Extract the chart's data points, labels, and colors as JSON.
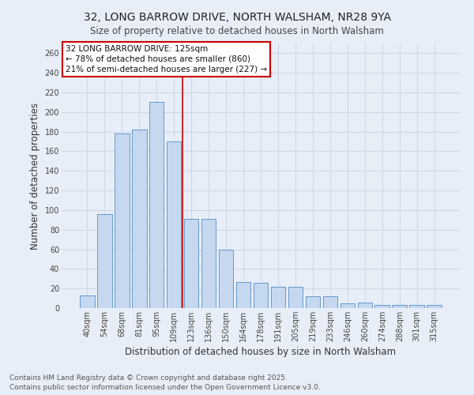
{
  "title": "32, LONG BARROW DRIVE, NORTH WALSHAM, NR28 9YA",
  "subtitle": "Size of property relative to detached houses in North Walsham",
  "xlabel": "Distribution of detached houses by size in North Walsham",
  "ylabel": "Number of detached properties",
  "categories": [
    "40sqm",
    "54sqm",
    "68sqm",
    "81sqm",
    "95sqm",
    "109sqm",
    "123sqm",
    "136sqm",
    "150sqm",
    "164sqm",
    "178sqm",
    "191sqm",
    "205sqm",
    "219sqm",
    "233sqm",
    "246sqm",
    "260sqm",
    "274sqm",
    "288sqm",
    "301sqm",
    "315sqm"
  ],
  "values": [
    13,
    96,
    178,
    182,
    210,
    170,
    91,
    91,
    60,
    27,
    26,
    22,
    22,
    12,
    12,
    5,
    6,
    3,
    3,
    3,
    3
  ],
  "bar_color": "#c5d8f0",
  "bar_edge_color": "#6699cc",
  "ref_line_x": 5.5,
  "annotation_line1": "32 LONG BARROW DRIVE: 125sqm",
  "annotation_line2": "← 78% of detached houses are smaller (860)",
  "annotation_line3": "21% of semi-detached houses are larger (227) →",
  "annotation_box_color": "#ffffff",
  "annotation_box_edge": "#cc0000",
  "ref_line_color": "#cc0000",
  "footnote_line1": "Contains HM Land Registry data © Crown copyright and database right 2025.",
  "footnote_line2": "Contains public sector information licensed under the Open Government Licence v3.0.",
  "ylim": [
    0,
    270
  ],
  "yticks": [
    0,
    20,
    40,
    60,
    80,
    100,
    120,
    140,
    160,
    180,
    200,
    220,
    240,
    260
  ],
  "background_color": "#e8eef8",
  "grid_color": "#d0d8e8",
  "title_fontsize": 10,
  "subtitle_fontsize": 8.5,
  "axis_label_fontsize": 8.5,
  "tick_fontsize": 7,
  "annotation_fontsize": 7.5,
  "footnote_fontsize": 6.5
}
